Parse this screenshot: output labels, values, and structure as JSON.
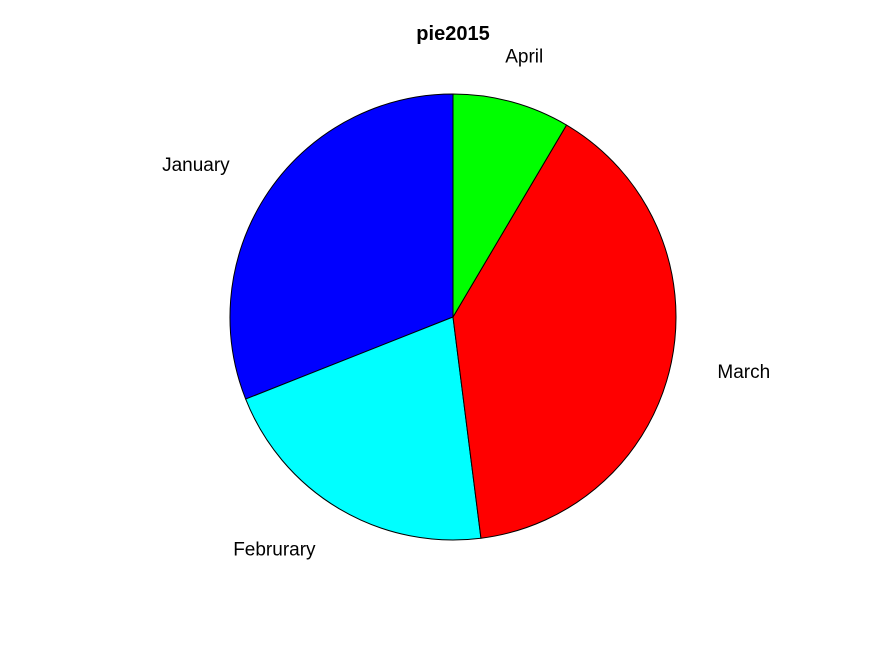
{
  "chart_data": {
    "type": "pie",
    "title": "pie2015",
    "categories": [
      "January",
      "Februrary",
      "March",
      "April"
    ],
    "values": [
      31,
      21,
      39.5,
      8.5
    ],
    "colors": [
      "#0000ff",
      "#00ffff",
      "#ff0000",
      "#00ff00"
    ],
    "direction": "counterclockwise",
    "start": "top",
    "legend": "none"
  }
}
